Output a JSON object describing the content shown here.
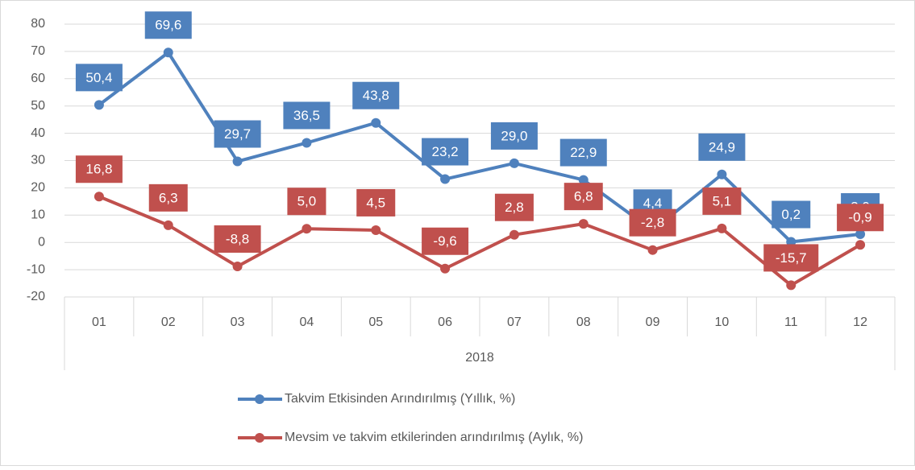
{
  "chart_data": {
    "type": "line",
    "categories": [
      "01",
      "02",
      "03",
      "04",
      "05",
      "06",
      "07",
      "08",
      "09",
      "10",
      "11",
      "12"
    ],
    "category_group": "2018",
    "series": [
      {
        "name": "Takvim Etkisinden Arındırılmış (Yıllık, %)",
        "color": "#4f81bd",
        "values": [
          50.4,
          69.6,
          29.7,
          36.5,
          43.8,
          23.2,
          29.0,
          22.9,
          4.4,
          24.9,
          0.2,
          3.0
        ],
        "value_labels": [
          "50,4",
          "69,6",
          "29,7",
          "36,5",
          "43,8",
          "23,2",
          "29,0",
          "22,9",
          "4,4",
          "24,9",
          "0,2",
          "3,0"
        ]
      },
      {
        "name": "Mevsim ve takvim etkilerinden arındırılmış (Aylık, %)",
        "color": "#c0504d",
        "values": [
          16.8,
          6.3,
          -8.8,
          5.0,
          4.5,
          -9.6,
          2.8,
          6.8,
          -2.8,
          5.1,
          -15.7,
          -0.9
        ],
        "value_labels": [
          "16,8",
          "6,3",
          "-8,8",
          "5,0",
          "4,5",
          "-9,6",
          "2,8",
          "6,8",
          "-2,8",
          "5,1",
          "-15,7",
          "-0,9"
        ]
      }
    ],
    "ylim": [
      -20,
      80
    ],
    "yticks": [
      -20,
      -10,
      0,
      10,
      20,
      30,
      40,
      50,
      60,
      70,
      80
    ],
    "grid": true,
    "legend": "bottom"
  }
}
